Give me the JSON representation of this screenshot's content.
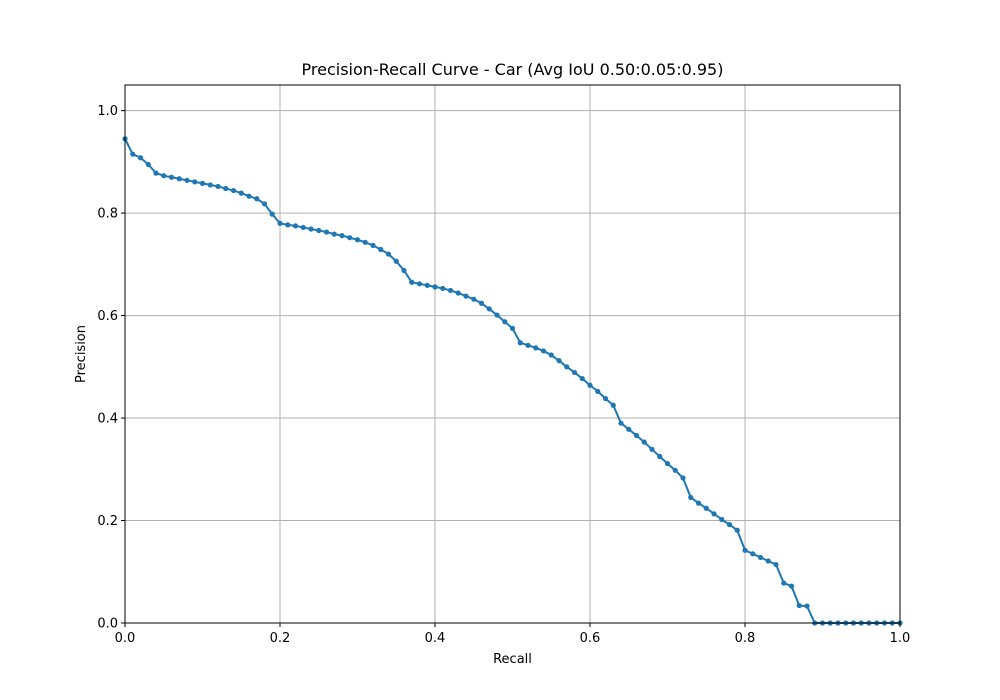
{
  "chart_data": {
    "type": "line",
    "title": "Precision-Recall Curve - Car (Avg IoU 0.50:0.05:0.95)",
    "xlabel": "Recall",
    "ylabel": "Precision",
    "xlim": [
      0,
      1
    ],
    "ylim": [
      0,
      1.05
    ],
    "xticks": [
      0,
      0.2,
      0.4,
      0.6,
      0.8,
      1.0
    ],
    "yticks": [
      0,
      0.2,
      0.4,
      0.6,
      0.8,
      1.0
    ],
    "xtick_labels": [
      "0.0",
      "0.2",
      "0.4",
      "0.6",
      "0.8",
      "1.0"
    ],
    "ytick_labels": [
      "0.0",
      "0.2",
      "0.4",
      "0.6",
      "0.8",
      "1.0"
    ],
    "grid": true,
    "line_color": "#1f77b4",
    "series": [
      {
        "x": [
          0.0,
          0.01,
          0.02,
          0.03,
          0.04,
          0.05,
          0.06,
          0.07,
          0.08,
          0.09,
          0.1,
          0.11,
          0.12,
          0.13,
          0.14,
          0.15,
          0.16,
          0.17,
          0.18,
          0.19,
          0.2,
          0.21,
          0.22,
          0.23,
          0.24,
          0.25,
          0.26,
          0.27,
          0.28,
          0.29,
          0.3,
          0.31,
          0.32,
          0.33,
          0.34,
          0.35,
          0.36,
          0.37,
          0.38,
          0.39,
          0.4,
          0.41,
          0.42,
          0.43,
          0.44,
          0.45,
          0.46,
          0.47,
          0.48,
          0.49,
          0.5,
          0.51,
          0.52,
          0.53,
          0.54,
          0.55,
          0.56,
          0.57,
          0.58,
          0.59,
          0.6,
          0.61,
          0.62,
          0.63,
          0.64,
          0.65,
          0.66,
          0.67,
          0.68,
          0.69,
          0.7,
          0.71,
          0.72,
          0.73,
          0.74,
          0.75,
          0.76,
          0.77,
          0.78,
          0.79,
          0.8,
          0.81,
          0.82,
          0.83,
          0.84,
          0.85,
          0.86,
          0.87,
          0.88,
          0.89,
          0.9,
          0.91,
          0.92,
          0.93,
          0.94,
          0.95,
          0.96,
          0.97,
          0.98,
          0.99,
          1.0
        ],
        "y": [
          0.945,
          0.915,
          0.908,
          0.895,
          0.878,
          0.873,
          0.87,
          0.867,
          0.864,
          0.861,
          0.858,
          0.855,
          0.852,
          0.848,
          0.844,
          0.839,
          0.833,
          0.828,
          0.818,
          0.798,
          0.78,
          0.777,
          0.775,
          0.772,
          0.769,
          0.766,
          0.763,
          0.759,
          0.756,
          0.752,
          0.748,
          0.743,
          0.737,
          0.729,
          0.72,
          0.706,
          0.688,
          0.665,
          0.662,
          0.659,
          0.656,
          0.653,
          0.649,
          0.644,
          0.638,
          0.632,
          0.624,
          0.613,
          0.601,
          0.588,
          0.575,
          0.547,
          0.542,
          0.537,
          0.531,
          0.523,
          0.512,
          0.5,
          0.489,
          0.477,
          0.464,
          0.452,
          0.438,
          0.425,
          0.39,
          0.378,
          0.366,
          0.353,
          0.339,
          0.325,
          0.311,
          0.298,
          0.283,
          0.245,
          0.234,
          0.224,
          0.213,
          0.202,
          0.192,
          0.181,
          0.142,
          0.135,
          0.128,
          0.121,
          0.114,
          0.078,
          0.072,
          0.034,
          0.033,
          0.0,
          0.0,
          0.0,
          0.0,
          0.0,
          0.0,
          0.0,
          0.0,
          0.0,
          0.0,
          0.0,
          0.0
        ]
      }
    ]
  }
}
